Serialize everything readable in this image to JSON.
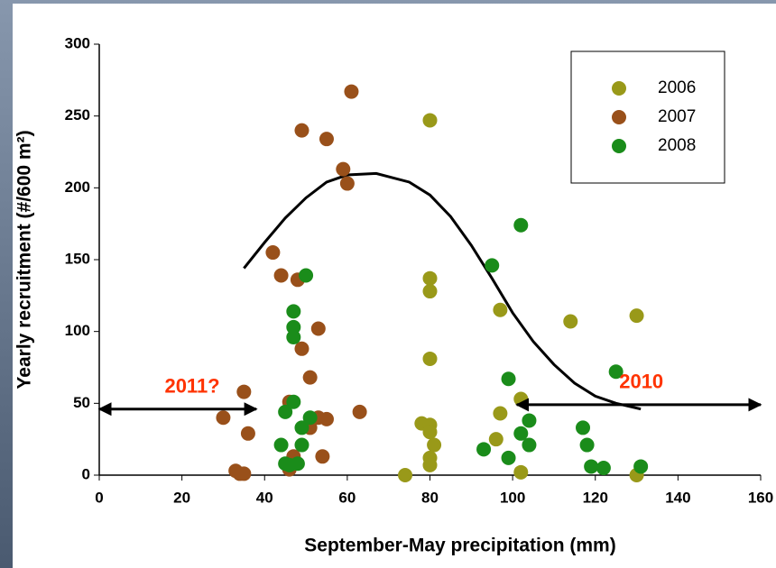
{
  "chart_data": {
    "type": "scatter",
    "xlabel": "September-May precipitation (mm)",
    "ylabel": "Yearly recruitment (#/600 m²)",
    "xlim": [
      0,
      160
    ],
    "xticks": [
      0,
      20,
      40,
      60,
      80,
      100,
      120,
      140,
      160
    ],
    "ylim": [
      0,
      300
    ],
    "yticks": [
      0,
      50,
      100,
      150,
      200,
      250,
      300
    ],
    "legend": "upper right",
    "series": [
      {
        "name": "2006",
        "color": "#999919",
        "x": [
          80,
          80,
          80,
          80,
          78,
          80,
          80,
          81,
          80,
          80,
          74,
          97,
          97,
          96,
          102,
          102,
          114,
          130,
          130
        ],
        "values": [
          247,
          137,
          128,
          81,
          36,
          35,
          30,
          21,
          12,
          7,
          0,
          115,
          43,
          25,
          53,
          2,
          107,
          111,
          0
        ]
      },
      {
        "name": "2007",
        "color": "#99501a",
        "x": [
          61,
          49,
          55,
          59,
          60,
          42,
          44,
          48,
          53,
          49,
          51,
          35,
          46,
          30,
          55,
          63,
          53,
          36,
          51,
          54,
          47,
          46,
          33,
          34,
          35
        ],
        "values": [
          267,
          240,
          234,
          213,
          203,
          155,
          139,
          136,
          102,
          88,
          68,
          58,
          51,
          40,
          39,
          44,
          40,
          29,
          33,
          13,
          13,
          4,
          3,
          1,
          1
        ]
      },
      {
        "name": "2008",
        "color": "#1a8c1a",
        "x": [
          50,
          47,
          47,
          47,
          47,
          45,
          49,
          51,
          44,
          49,
          45,
          46,
          48,
          102,
          95,
          99,
          104,
          102,
          104,
          93,
          99,
          117,
          118,
          119,
          122,
          125,
          131
        ],
        "values": [
          139,
          114,
          103,
          96,
          51,
          44,
          33,
          40,
          21,
          21,
          8,
          7,
          8,
          174,
          146,
          67,
          38,
          29,
          21,
          18,
          12,
          33,
          21,
          6,
          5,
          72,
          6
        ]
      }
    ],
    "curve": {
      "color": "#000000",
      "x": [
        35,
        40,
        45,
        50,
        55,
        60,
        67,
        75,
        80,
        85,
        90,
        95,
        100,
        105,
        110,
        115,
        120,
        125,
        131
      ],
      "values": [
        144,
        162,
        179,
        193,
        204,
        209,
        210,
        204,
        195,
        180,
        160,
        137,
        113,
        93,
        77,
        64,
        55,
        50,
        46
      ]
    },
    "annotations": [
      {
        "text": "2011?",
        "color": "#ff3300",
        "x": [
          0,
          38
        ],
        "y": 46
      },
      {
        "text": "2010",
        "color": "#ff3300",
        "x": [
          101,
          160
        ],
        "y": 49
      }
    ]
  }
}
